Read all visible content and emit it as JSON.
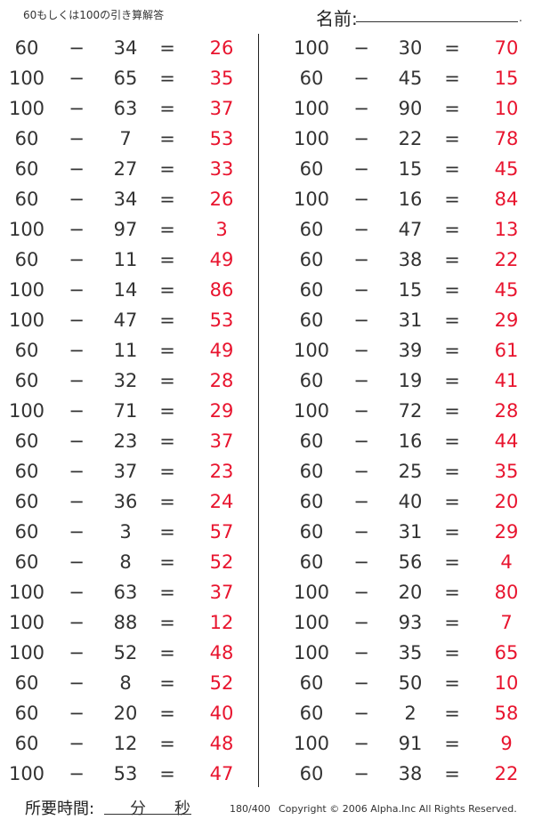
{
  "header": {
    "title": "60もしくは100の引き算解答",
    "name_label": "名前:"
  },
  "symbols": {
    "minus": "−",
    "equals": "="
  },
  "colors": {
    "answer": "#e8142e",
    "text": "#333333"
  },
  "left_problems": [
    {
      "a": "60",
      "b": "34",
      "ans": "26"
    },
    {
      "a": "100",
      "b": "65",
      "ans": "35"
    },
    {
      "a": "100",
      "b": "63",
      "ans": "37"
    },
    {
      "a": "60",
      "b": "7",
      "ans": "53"
    },
    {
      "a": "60",
      "b": "27",
      "ans": "33"
    },
    {
      "a": "60",
      "b": "34",
      "ans": "26"
    },
    {
      "a": "100",
      "b": "97",
      "ans": "3"
    },
    {
      "a": "60",
      "b": "11",
      "ans": "49"
    },
    {
      "a": "100",
      "b": "14",
      "ans": "86"
    },
    {
      "a": "100",
      "b": "47",
      "ans": "53"
    },
    {
      "a": "60",
      "b": "11",
      "ans": "49"
    },
    {
      "a": "60",
      "b": "32",
      "ans": "28"
    },
    {
      "a": "100",
      "b": "71",
      "ans": "29"
    },
    {
      "a": "60",
      "b": "23",
      "ans": "37"
    },
    {
      "a": "60",
      "b": "37",
      "ans": "23"
    },
    {
      "a": "60",
      "b": "36",
      "ans": "24"
    },
    {
      "a": "60",
      "b": "3",
      "ans": "57"
    },
    {
      "a": "60",
      "b": "8",
      "ans": "52"
    },
    {
      "a": "100",
      "b": "63",
      "ans": "37"
    },
    {
      "a": "100",
      "b": "88",
      "ans": "12"
    },
    {
      "a": "100",
      "b": "52",
      "ans": "48"
    },
    {
      "a": "60",
      "b": "8",
      "ans": "52"
    },
    {
      "a": "60",
      "b": "20",
      "ans": "40"
    },
    {
      "a": "60",
      "b": "12",
      "ans": "48"
    },
    {
      "a": "100",
      "b": "53",
      "ans": "47"
    }
  ],
  "right_problems": [
    {
      "a": "100",
      "b": "30",
      "ans": "70"
    },
    {
      "a": "60",
      "b": "45",
      "ans": "15"
    },
    {
      "a": "100",
      "b": "90",
      "ans": "10"
    },
    {
      "a": "100",
      "b": "22",
      "ans": "78"
    },
    {
      "a": "60",
      "b": "15",
      "ans": "45"
    },
    {
      "a": "100",
      "b": "16",
      "ans": "84"
    },
    {
      "a": "60",
      "b": "47",
      "ans": "13"
    },
    {
      "a": "60",
      "b": "38",
      "ans": "22"
    },
    {
      "a": "60",
      "b": "15",
      "ans": "45"
    },
    {
      "a": "60",
      "b": "31",
      "ans": "29"
    },
    {
      "a": "100",
      "b": "39",
      "ans": "61"
    },
    {
      "a": "60",
      "b": "19",
      "ans": "41"
    },
    {
      "a": "100",
      "b": "72",
      "ans": "28"
    },
    {
      "a": "60",
      "b": "16",
      "ans": "44"
    },
    {
      "a": "60",
      "b": "25",
      "ans": "35"
    },
    {
      "a": "60",
      "b": "40",
      "ans": "20"
    },
    {
      "a": "60",
      "b": "31",
      "ans": "29"
    },
    {
      "a": "60",
      "b": "56",
      "ans": "4"
    },
    {
      "a": "100",
      "b": "20",
      "ans": "80"
    },
    {
      "a": "100",
      "b": "93",
      "ans": "7"
    },
    {
      "a": "100",
      "b": "35",
      "ans": "65"
    },
    {
      "a": "60",
      "b": "50",
      "ans": "10"
    },
    {
      "a": "60",
      "b": "2",
      "ans": "58"
    },
    {
      "a": "100",
      "b": "91",
      "ans": "9"
    },
    {
      "a": "60",
      "b": "38",
      "ans": "22"
    }
  ],
  "footer": {
    "time_label": "所要時間:",
    "minutes_label": "分",
    "seconds_label": "秒",
    "page_number": "180/400",
    "copyright": "Copyright © 2006 Alpha.Inc All Rights Reserved."
  }
}
